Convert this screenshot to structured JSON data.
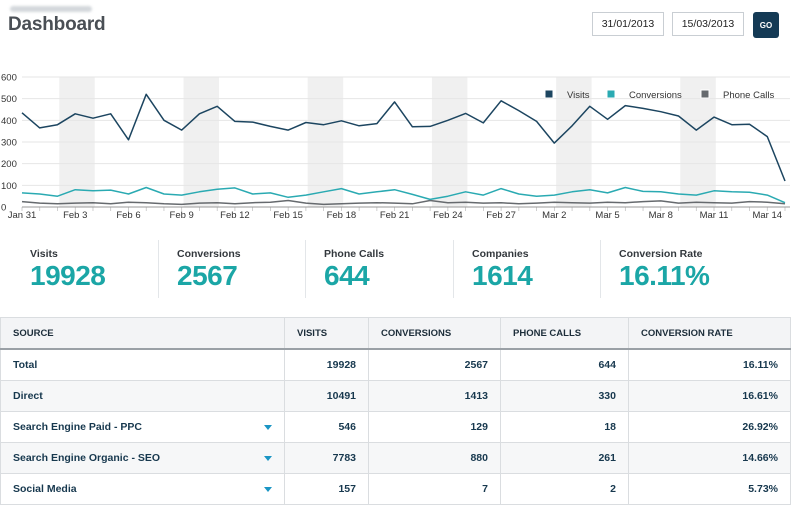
{
  "header": {
    "title": "Dashboard",
    "date_from": "31/01/2013",
    "date_to": "15/03/2013",
    "go_label": "GO"
  },
  "chart_data": {
    "type": "line",
    "x": [
      "Jan 31",
      "Feb 1",
      "Feb 2",
      "Feb 3",
      "Feb 4",
      "Feb 5",
      "Feb 6",
      "Feb 7",
      "Feb 8",
      "Feb 9",
      "Feb 10",
      "Feb 11",
      "Feb 12",
      "Feb 13",
      "Feb 14",
      "Feb 15",
      "Feb 16",
      "Feb 17",
      "Feb 18",
      "Feb 19",
      "Feb 20",
      "Feb 21",
      "Feb 22",
      "Feb 23",
      "Feb 24",
      "Feb 25",
      "Feb 26",
      "Feb 27",
      "Feb 28",
      "Mar 1",
      "Mar 2",
      "Mar 3",
      "Mar 4",
      "Mar 5",
      "Mar 6",
      "Mar 7",
      "Mar 8",
      "Mar 9",
      "Mar 10",
      "Mar 11",
      "Mar 12",
      "Mar 13",
      "Mar 14",
      "Mar 15"
    ],
    "x_tick_labels": [
      "Jan 31",
      "Feb 3",
      "Feb 6",
      "Feb 9",
      "Feb 12",
      "Feb 15",
      "Feb 18",
      "Feb 21",
      "Feb 24",
      "Feb 27",
      "Mar 2",
      "Mar 5",
      "Mar 8",
      "Mar 11",
      "Mar 14"
    ],
    "ylim": [
      0,
      600
    ],
    "yticks": [
      0,
      100,
      200,
      300,
      400,
      500,
      600
    ],
    "grid": true,
    "legend_position": "top-right",
    "weekend_shading": true,
    "series": [
      {
        "name": "Visits",
        "color": "#1c4560",
        "values": [
          435,
          365,
          380,
          430,
          410,
          430,
          310,
          520,
          400,
          355,
          430,
          465,
          395,
          392,
          372,
          355,
          390,
          380,
          398,
          375,
          385,
          485,
          370,
          372,
          400,
          432,
          388,
          490,
          445,
          395,
          295,
          375,
          465,
          405,
          468,
          455,
          440,
          420,
          355,
          415,
          380,
          382,
          325,
          120
        ]
      },
      {
        "name": "Conversions",
        "color": "#2aaab2",
        "values": [
          65,
          60,
          50,
          80,
          75,
          78,
          60,
          90,
          60,
          55,
          70,
          82,
          88,
          60,
          65,
          45,
          55,
          70,
          85,
          60,
          70,
          80,
          58,
          35,
          50,
          70,
          55,
          85,
          60,
          50,
          55,
          70,
          80,
          65,
          90,
          72,
          70,
          60,
          55,
          75,
          70,
          68,
          55,
          20
        ]
      },
      {
        "name": "Phone Calls",
        "color": "#666a6e",
        "values": [
          25,
          18,
          15,
          18,
          20,
          15,
          22,
          20,
          15,
          12,
          18,
          20,
          15,
          20,
          22,
          30,
          18,
          12,
          15,
          18,
          20,
          18,
          15,
          30,
          20,
          22,
          18,
          20,
          15,
          18,
          22,
          20,
          18,
          22,
          20,
          25,
          28,
          18,
          22,
          20,
          18,
          25,
          22,
          15
        ]
      }
    ]
  },
  "stats": [
    {
      "label": "Visits",
      "value": "19928"
    },
    {
      "label": "Conversions",
      "value": "2567"
    },
    {
      "label": "Phone Calls",
      "value": "644"
    },
    {
      "label": "Companies",
      "value": "1614"
    },
    {
      "label": "Conversion Rate",
      "value": "16.11%"
    }
  ],
  "table": {
    "headers": [
      "SOURCE",
      "VISITS",
      "CONVERSIONS",
      "PHONE CALLS",
      "CONVERSION RATE"
    ],
    "rows": [
      {
        "source": "Total",
        "visits": "19928",
        "conversions": "2567",
        "phone_calls": "644",
        "rate": "16.11%",
        "expandable": false
      },
      {
        "source": "Direct",
        "visits": "10491",
        "conversions": "1413",
        "phone_calls": "330",
        "rate": "16.61%",
        "expandable": false
      },
      {
        "source": "Search Engine Paid - PPC",
        "visits": "546",
        "conversions": "129",
        "phone_calls": "18",
        "rate": "26.92%",
        "expandable": true
      },
      {
        "source": "Search Engine Organic - SEO",
        "visits": "7783",
        "conversions": "880",
        "phone_calls": "261",
        "rate": "14.66%",
        "expandable": true
      },
      {
        "source": "Social Media",
        "visits": "157",
        "conversions": "7",
        "phone_calls": "2",
        "rate": "5.73%",
        "expandable": true
      }
    ]
  }
}
